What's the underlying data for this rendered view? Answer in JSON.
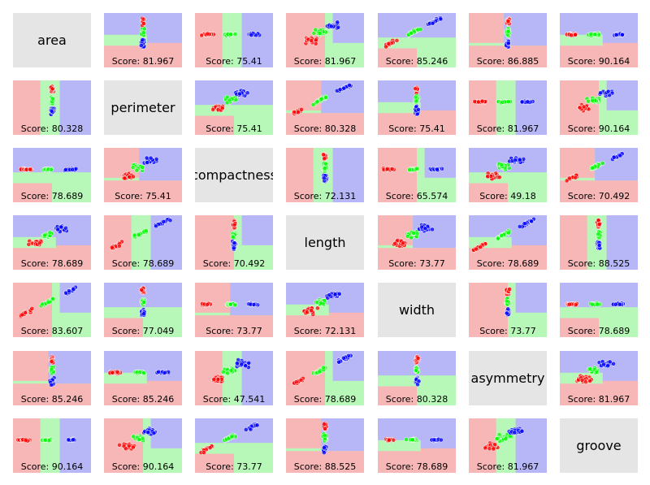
{
  "chart_data": {
    "type": "scatter",
    "features": [
      "area",
      "perimeter",
      "compactness",
      "length",
      "width",
      "asymmetry",
      "groove"
    ],
    "score_prefix": "Score: ",
    "class_colors": {
      "class_1": "#ff0000",
      "class_2": "#00ff00",
      "class_3": "#0000ff"
    },
    "region_colors": {
      "class_1": "#f7b7b7",
      "class_2": "#b7f7b7",
      "class_3": "#b7b7f7"
    },
    "diagonal_color": "#e5e5e5",
    "scores": [
      [
        null,
        "81.967",
        "75.41",
        "81.967",
        "85.246",
        "86.885",
        "90.164"
      ],
      [
        "80.328",
        null,
        "75.41",
        "80.328",
        "75.41",
        "81.967",
        "90.164"
      ],
      [
        "78.689",
        "75.41",
        null,
        "72.131",
        "65.574",
        "49.18",
        "70.492"
      ],
      [
        "78.689",
        "78.689",
        "70.492",
        null,
        "73.77",
        "78.689",
        "88.525"
      ],
      [
        "83.607",
        "77.049",
        "73.77",
        "72.131",
        null,
        "73.77",
        "78.689"
      ],
      [
        "85.246",
        "85.246",
        "47.541",
        "78.689",
        "80.328",
        null,
        "81.967"
      ],
      [
        "90.164",
        "90.164",
        "73.77",
        "88.525",
        "78.689",
        "81.967",
        null
      ]
    ]
  }
}
